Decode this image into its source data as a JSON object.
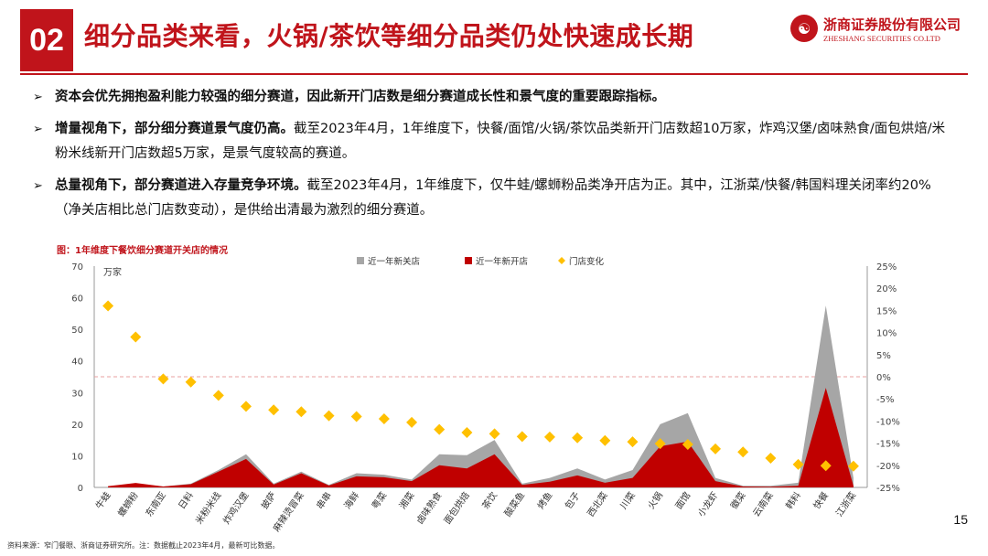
{
  "header": {
    "section_number": "02",
    "title": "细分品类来看，火锅/茶饮等细分品类仍处快速成长期",
    "logo_cn": "浙商证券股份有限公司",
    "logo_en": "ZHESHANG SECURITIES CO.LTD"
  },
  "bullets": [
    {
      "bold": "资本会优先拥抱盈利能力较强的细分赛道，因此新开门店数是细分赛道成长性和景气度的重要跟踪指标。",
      "text": ""
    },
    {
      "bold": "增量视角下，部分细分赛道景气度仍高。",
      "text": "截至2023年4月，1年维度下，快餐/面馆/火锅/茶饮品类新开门店数超10万家，炸鸡汉堡/卤味熟食/面包烘焙/米粉米线新开门店数超5万家，是景气度较高的赛道。"
    },
    {
      "bold": "总量视角下，部分赛道进入存量竞争环境。",
      "text": "截至2023年4月，1年维度下，仅牛蛙/螺蛳粉品类净开店为正。其中，江浙菜/快餐/韩国料理关闭率约20%（净关店相比总门店数变动），是供给出清最为激烈的细分赛道。"
    }
  ],
  "chart_caption": "图：1年维度下餐饮细分赛道开关店的情况",
  "chart_data": {
    "type": "area",
    "categories": [
      "牛蛙",
      "螺蛳粉",
      "东南亚",
      "日料",
      "米粉米线",
      "炸鸡汉堡",
      "披萨",
      "麻辣烫冒菜",
      "串串",
      "海鲜",
      "粤菜",
      "湘菜",
      "卤味熟食",
      "面包烘焙",
      "茶饮",
      "酸菜鱼",
      "烤鱼",
      "包子",
      "西北菜",
      "川菜",
      "火锅",
      "面馆",
      "小龙虾",
      "徽菜",
      "云南菜",
      "韩料",
      "快餐",
      "江浙菜"
    ],
    "y_left_unit": "万家",
    "ylim_left": [
      0,
      70
    ],
    "ylim_right": [
      -25,
      25
    ],
    "right_tick_labels": [
      "25%",
      "20%",
      "15%",
      "10%",
      "5%",
      "0%",
      "-5%",
      "-10%",
      "-15%",
      "-20%",
      "-25%"
    ],
    "series": [
      {
        "name": "近一年新关店",
        "type": "area",
        "axis": "left",
        "color": "#a6a6a6",
        "values": [
          0.3,
          1.2,
          0.3,
          1.2,
          5.5,
          10.5,
          1.2,
          5.0,
          0.8,
          4.5,
          4.0,
          2.5,
          10.5,
          10.2,
          15.0,
          1.2,
          3.0,
          6.0,
          2.5,
          5.5,
          20.0,
          23.5,
          3.0,
          0.5,
          0.5,
          1.5,
          57.5,
          3.0
        ]
      },
      {
        "name": "近一年新开店",
        "type": "area",
        "axis": "left",
        "color": "#c00000",
        "values": [
          0.4,
          1.4,
          0.3,
          1.0,
          5.0,
          9.0,
          0.9,
          4.5,
          0.6,
          3.5,
          3.2,
          2.0,
          7.0,
          6.0,
          10.5,
          0.8,
          1.8,
          3.8,
          1.5,
          3.0,
          13.0,
          14.5,
          2.0,
          0.3,
          0.2,
          0.5,
          31.5,
          0.5
        ]
      },
      {
        "name": "门店变化",
        "type": "scatter",
        "axis": "right",
        "color": "#ffc000",
        "values": [
          16.0,
          9.0,
          -0.5,
          -1.2,
          -4.2,
          -6.7,
          -7.5,
          -7.9,
          -8.8,
          -9.0,
          -9.5,
          -10.3,
          -11.9,
          -12.6,
          -12.9,
          -13.5,
          -13.6,
          -13.8,
          -14.4,
          -14.7,
          -15.1,
          -15.3,
          -16.3,
          -17.0,
          -18.4,
          -19.8,
          -20.1,
          -20.2
        ]
      }
    ],
    "zero_line": "right axis 0%",
    "legend_position": "top-center"
  },
  "source": "资料来源：窄门餐眼、浙商证券研究所。注：数据截止2023年4月，最新可比数据。",
  "page_number": "15"
}
